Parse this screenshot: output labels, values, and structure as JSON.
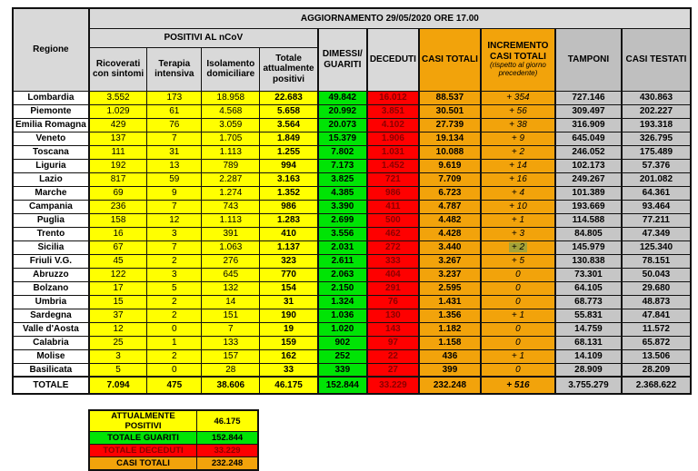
{
  "title": "AGGIORNAMENTO 29/05/2020 ORE 17.00",
  "colors": {
    "yellow": "#ffff00",
    "green": "#00e405",
    "red": "#fe0000",
    "dark_red_text": "#8b0000",
    "orange": "#f2a30b",
    "header_gray": "#d9d9d9",
    "column_gray": "#c6c6c6",
    "highlight_olive": "#a6a338"
  },
  "chart_data": {
    "type": "table",
    "title": "AGGIORNAMENTO 29/05/2020 ORE 17.00",
    "headers": {
      "regione": "Regione",
      "positivi_group": "POSITIVI AL nCoV",
      "ricoverati": "Ricoverati\ncon sintomi",
      "terapia": "Terapia\nintensiva",
      "isolamento": "Isolamento\ndomiciliare",
      "attualmente_positivi": "Totale\nattualmente\npositivi",
      "dimessi_guariti": "DIMESSI/\nGUARITI",
      "deceduti": "DECEDUTI",
      "casi_totali": "CASI TOTALI",
      "incremento": "INCREMENTO\nCASI  TOTALI",
      "incremento_note": "(rispetto al giorno precedente)",
      "tamponi": "TAMPONI",
      "casi_testati": "CASI TESTATI"
    },
    "rows": [
      {
        "region": "Lombardia",
        "ricoverati": "3.552",
        "terapia": "173",
        "isolamento": "18.958",
        "attualmente_positivi": "22.683",
        "dimessi_guariti": "49.842",
        "deceduti": "16.012",
        "casi_totali": "88.537",
        "incremento": "+ 354",
        "tamponi": "727.146",
        "casi_testati": "430.863"
      },
      {
        "region": "Piemonte",
        "ricoverati": "1.029",
        "terapia": "61",
        "isolamento": "4.568",
        "attualmente_positivi": "5.658",
        "dimessi_guariti": "20.992",
        "deceduti": "3.851",
        "casi_totali": "30.501",
        "incremento": "+ 56",
        "tamponi": "309.497",
        "casi_testati": "202.227"
      },
      {
        "region": "Emilia Romagna",
        "ricoverati": "429",
        "terapia": "76",
        "isolamento": "3.059",
        "attualmente_positivi": "3.564",
        "dimessi_guariti": "20.073",
        "deceduti": "4.102",
        "casi_totali": "27.739",
        "incremento": "+ 38",
        "tamponi": "316.909",
        "casi_testati": "193.318"
      },
      {
        "region": "Veneto",
        "ricoverati": "137",
        "terapia": "7",
        "isolamento": "1.705",
        "attualmente_positivi": "1.849",
        "dimessi_guariti": "15.379",
        "deceduti": "1.906",
        "casi_totali": "19.134",
        "incremento": "+ 9",
        "tamponi": "645.049",
        "casi_testati": "326.795"
      },
      {
        "region": "Toscana",
        "ricoverati": "111",
        "terapia": "31",
        "isolamento": "1.113",
        "attualmente_positivi": "1.255",
        "dimessi_guariti": "7.802",
        "deceduti": "1.031",
        "casi_totali": "10.088",
        "incremento": "+ 2",
        "tamponi": "246.052",
        "casi_testati": "175.489"
      },
      {
        "region": "Liguria",
        "ricoverati": "192",
        "terapia": "13",
        "isolamento": "789",
        "attualmente_positivi": "994",
        "dimessi_guariti": "7.173",
        "deceduti": "1.452",
        "casi_totali": "9.619",
        "incremento": "+ 14",
        "tamponi": "102.173",
        "casi_testati": "57.376"
      },
      {
        "region": "Lazio",
        "ricoverati": "817",
        "terapia": "59",
        "isolamento": "2.287",
        "attualmente_positivi": "3.163",
        "dimessi_guariti": "3.825",
        "deceduti": "721",
        "casi_totali": "7.709",
        "incremento": "+ 16",
        "tamponi": "249.267",
        "casi_testati": "201.082"
      },
      {
        "region": "Marche",
        "ricoverati": "69",
        "terapia": "9",
        "isolamento": "1.274",
        "attualmente_positivi": "1.352",
        "dimessi_guariti": "4.385",
        "deceduti": "986",
        "casi_totali": "6.723",
        "incremento": "+ 4",
        "tamponi": "101.389",
        "casi_testati": "64.361"
      },
      {
        "region": "Campania",
        "ricoverati": "236",
        "terapia": "7",
        "isolamento": "743",
        "attualmente_positivi": "986",
        "dimessi_guariti": "3.390",
        "deceduti": "411",
        "casi_totali": "4.787",
        "incremento": "+ 10",
        "tamponi": "193.669",
        "casi_testati": "93.464"
      },
      {
        "region": "Puglia",
        "ricoverati": "158",
        "terapia": "12",
        "isolamento": "1.113",
        "attualmente_positivi": "1.283",
        "dimessi_guariti": "2.699",
        "deceduti": "500",
        "casi_totali": "4.482",
        "incremento": "+ 1",
        "tamponi": "114.588",
        "casi_testati": "77.211"
      },
      {
        "region": "Trento",
        "ricoverati": "16",
        "terapia": "3",
        "isolamento": "391",
        "attualmente_positivi": "410",
        "dimessi_guariti": "3.556",
        "deceduti": "462",
        "casi_totali": "4.428",
        "incremento": "+ 3",
        "tamponi": "84.805",
        "casi_testati": "47.349"
      },
      {
        "region": "Sicilia",
        "ricoverati": "67",
        "terapia": "7",
        "isolamento": "1.063",
        "attualmente_positivi": "1.137",
        "dimessi_guariti": "2.031",
        "deceduti": "272",
        "casi_totali": "3.440",
        "incremento": "+ 2",
        "incremento_highlight": true,
        "tamponi": "145.979",
        "casi_testati": "125.340"
      },
      {
        "region": "Friuli V.G.",
        "ricoverati": "45",
        "terapia": "2",
        "isolamento": "276",
        "attualmente_positivi": "323",
        "dimessi_guariti": "2.611",
        "deceduti": "333",
        "casi_totali": "3.267",
        "incremento": "+ 5",
        "tamponi": "130.838",
        "casi_testati": "78.151"
      },
      {
        "region": "Abruzzo",
        "ricoverati": "122",
        "terapia": "3",
        "isolamento": "645",
        "attualmente_positivi": "770",
        "dimessi_guariti": "2.063",
        "deceduti": "404",
        "casi_totali": "3.237",
        "incremento": "0",
        "tamponi": "73.301",
        "casi_testati": "50.043"
      },
      {
        "region": "Bolzano",
        "ricoverati": "17",
        "terapia": "5",
        "isolamento": "132",
        "attualmente_positivi": "154",
        "dimessi_guariti": "2.150",
        "deceduti": "291",
        "casi_totali": "2.595",
        "incremento": "0",
        "tamponi": "64.105",
        "casi_testati": "29.680"
      },
      {
        "region": "Umbria",
        "ricoverati": "15",
        "terapia": "2",
        "isolamento": "14",
        "attualmente_positivi": "31",
        "dimessi_guariti": "1.324",
        "deceduti": "76",
        "casi_totali": "1.431",
        "incremento": "0",
        "tamponi": "68.773",
        "casi_testati": "48.873"
      },
      {
        "region": "Sardegna",
        "ricoverati": "37",
        "terapia": "2",
        "isolamento": "151",
        "attualmente_positivi": "190",
        "dimessi_guariti": "1.036",
        "deceduti": "130",
        "casi_totali": "1.356",
        "incremento": "+ 1",
        "tamponi": "55.831",
        "casi_testati": "47.841"
      },
      {
        "region": "Valle d'Aosta",
        "ricoverati": "12",
        "terapia": "0",
        "isolamento": "7",
        "attualmente_positivi": "19",
        "dimessi_guariti": "1.020",
        "deceduti": "143",
        "casi_totali": "1.182",
        "incremento": "0",
        "tamponi": "14.759",
        "casi_testati": "11.572"
      },
      {
        "region": "Calabria",
        "ricoverati": "25",
        "terapia": "1",
        "isolamento": "133",
        "attualmente_positivi": "159",
        "dimessi_guariti": "902",
        "deceduti": "97",
        "casi_totali": "1.158",
        "incremento": "0",
        "tamponi": "68.131",
        "casi_testati": "65.872"
      },
      {
        "region": "Molise",
        "ricoverati": "3",
        "terapia": "2",
        "isolamento": "157",
        "attualmente_positivi": "162",
        "dimessi_guariti": "252",
        "deceduti": "22",
        "casi_totali": "436",
        "incremento": "+ 1",
        "tamponi": "14.109",
        "casi_testati": "13.506"
      },
      {
        "region": "Basilicata",
        "ricoverati": "5",
        "terapia": "0",
        "isolamento": "28",
        "attualmente_positivi": "33",
        "dimessi_guariti": "339",
        "deceduti": "27",
        "casi_totali": "399",
        "incremento": "0",
        "tamponi": "28.909",
        "casi_testati": "28.209"
      }
    ],
    "total_row": {
      "region": "TOTALE",
      "ricoverati": "7.094",
      "terapia": "475",
      "isolamento": "38.606",
      "attualmente_positivi": "46.175",
      "dimessi_guariti": "152.844",
      "deceduti": "33.229",
      "casi_totali": "232.248",
      "incremento": "+ 516",
      "tamponi": "3.755.279",
      "casi_testati": "2.368.622"
    }
  },
  "legend": [
    {
      "label": "ATTUALMENTE POSITIVI",
      "value": "46.175",
      "color": "yellow"
    },
    {
      "label": "TOTALE GUARITI",
      "value": "152.844",
      "color": "green"
    },
    {
      "label": "TOTALE DECEDUTI",
      "value": "33.229",
      "color": "red"
    },
    {
      "label": "CASI TOTALI",
      "value": "232.248",
      "color": "orange"
    }
  ]
}
